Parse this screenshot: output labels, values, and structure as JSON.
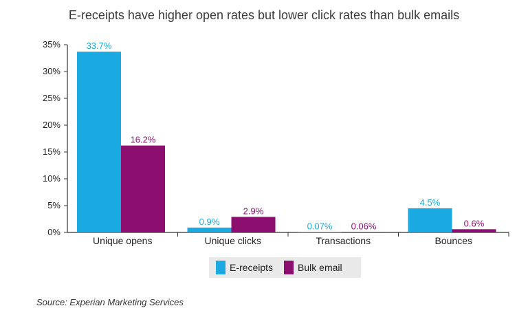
{
  "chart_data": {
    "type": "bar",
    "title": "E-receipts have higher open rates but lower click rates than bulk emails",
    "categories": [
      "Unique opens",
      "Unique clicks",
      "Transactions",
      "Bounces"
    ],
    "series": [
      {
        "name": "E-receipts",
        "color": "#1aa9e0",
        "values": [
          33.7,
          0.9,
          0.07,
          4.5
        ],
        "labels": [
          "33.7%",
          "0.9%",
          "0.07%",
          "4.5%"
        ]
      },
      {
        "name": "Bulk email",
        "color": "#8c0f6f",
        "values": [
          16.2,
          2.9,
          0.06,
          0.6
        ],
        "labels": [
          "16.2%",
          "2.9%",
          "0.06%",
          "0.6%"
        ]
      }
    ],
    "ylim": [
      0,
      35
    ],
    "yticks": [
      "0%",
      "5%",
      "10%",
      "15%",
      "20%",
      "25%",
      "30%",
      "35%"
    ],
    "grid": false,
    "legend_position": "bottom",
    "source": "Source: Experian Marketing Services"
  }
}
